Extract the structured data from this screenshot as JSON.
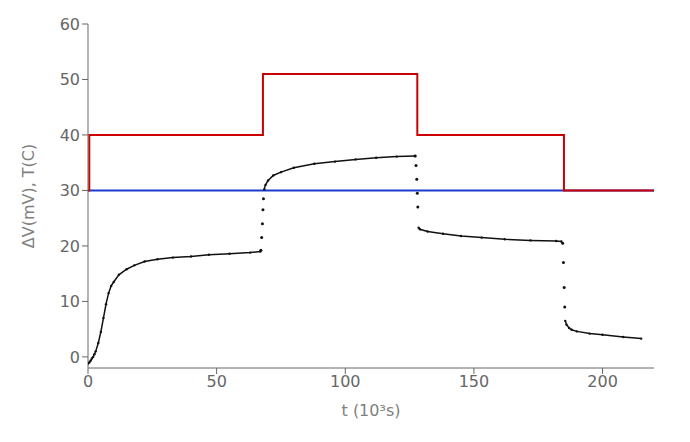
{
  "chart_data": {
    "type": "line",
    "xlabel": "t (10³s)",
    "ylabel": "ΔV(mV), T(C)",
    "xlim": [
      0,
      220
    ],
    "ylim": [
      -2,
      60
    ],
    "xticks": [
      0,
      50,
      100,
      150,
      200
    ],
    "yticks": [
      0,
      10,
      20,
      30,
      40,
      50,
      60
    ],
    "grid": false,
    "hline": {
      "y": 30,
      "color": "#1a3acc"
    },
    "series": [
      {
        "x": [
          0,
          0.5,
          0.5,
          68,
          68,
          128,
          128,
          185,
          185,
          220
        ],
        "values": [
          30,
          30,
          40,
          40,
          51,
          51,
          40,
          40,
          30,
          30
        ],
        "color": "#cc0000",
        "line_style": "solid",
        "marker": "none"
      },
      {
        "x": [
          0,
          0.5,
          1,
          1.5,
          2,
          2.5,
          3,
          4,
          5,
          6,
          7,
          8,
          9,
          10,
          12,
          15,
          18,
          22,
          27,
          33,
          40,
          47,
          55,
          63,
          67
        ],
        "values": [
          -1.2,
          -1.0,
          -0.7,
          -0.3,
          0.0,
          0.5,
          1.0,
          2.5,
          4.5,
          7.0,
          9.5,
          11.5,
          12.8,
          13.5,
          14.8,
          15.8,
          16.5,
          17.2,
          17.6,
          17.9,
          18.1,
          18.4,
          18.6,
          18.8,
          19.0
        ],
        "color": "#111111",
        "line_style": "solid",
        "marker": "dot"
      },
      {
        "x": [
          68.5,
          69,
          70,
          72,
          75,
          80,
          88,
          96,
          104,
          112,
          120,
          127
        ],
        "values": [
          30.2,
          31.0,
          31.8,
          32.7,
          33.3,
          34.1,
          34.8,
          35.2,
          35.6,
          35.9,
          36.1,
          36.2
        ],
        "color": "#111111",
        "line_style": "solid",
        "marker": "dot"
      },
      {
        "x": [
          128.5,
          129,
          132,
          138,
          145,
          153,
          162,
          172,
          182,
          184
        ],
        "values": [
          23.3,
          23.0,
          22.6,
          22.2,
          21.8,
          21.5,
          21.2,
          21.0,
          20.9,
          20.8
        ],
        "color": "#111111",
        "line_style": "solid",
        "marker": "dot"
      },
      {
        "x": [
          185.5,
          186,
          187,
          188,
          190,
          195,
          200,
          208,
          215
        ],
        "values": [
          6.5,
          5.8,
          5.2,
          4.9,
          4.6,
          4.2,
          4.0,
          3.6,
          3.3
        ],
        "color": "#111111",
        "line_style": "solid",
        "marker": "dot"
      },
      {
        "x": [
          67.2,
          67.5,
          67.8,
          68.0,
          68.2
        ],
        "values": [
          19.2,
          21.5,
          24.0,
          26.5,
          28.5
        ],
        "color": "#111111",
        "line_style": "none",
        "marker": "dot"
      },
      {
        "x": [
          127.2,
          127.5,
          127.8,
          128.0,
          128.2
        ],
        "values": [
          36.2,
          34.5,
          32.0,
          29.5,
          27.0
        ],
        "color": "#111111",
        "line_style": "none",
        "marker": "dot"
      },
      {
        "x": [
          184.5,
          184.8,
          185.1,
          185.3
        ],
        "values": [
          20.5,
          17.0,
          12.5,
          9.0
        ],
        "color": "#111111",
        "line_style": "none",
        "marker": "dot"
      }
    ]
  }
}
